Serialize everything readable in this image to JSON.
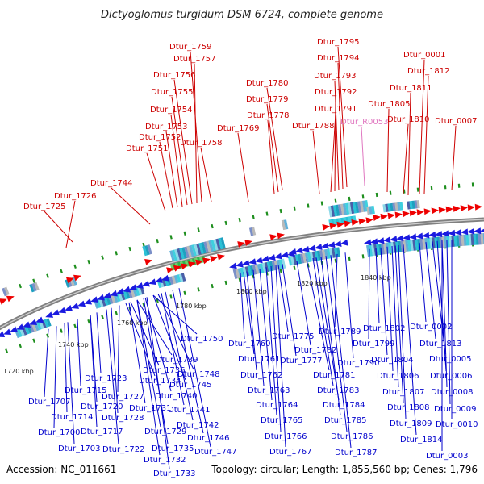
{
  "title": "Dictyoglomus turgidum DSM 6724, complete genome",
  "footer": {
    "accession": "Accession: NC_011661",
    "stats": "Topology: circular; Length: 1,855,560 bp; Genes: 1,796"
  },
  "colors": {
    "top_label": "#cc0000",
    "bottom_label": "#0000cc",
    "rna_label": "#e077c0",
    "forward_arrow": "#ee0000",
    "reverse_arrow": "#1a1ae0",
    "backbone": "#777777",
    "tick": "#1f8f1f"
  },
  "top_labels": [
    "Dtur_1759",
    "Dtur_1757",
    "Dtur_1756",
    "Dtur_1755",
    "Dtur_1754",
    "Dtur_1753",
    "Dtur_1752",
    "Dtur_1751",
    "Dtur_1758",
    "Dtur_1744",
    "Dtur_1726",
    "Dtur_1725",
    "Dtur_1780",
    "Dtur_1779",
    "Dtur_1778",
    "Dtur_1769",
    "Dtur_1795",
    "Dtur_1794",
    "Dtur_1793",
    "Dtur_1792",
    "Dtur_1791",
    "Dtur_1788",
    "Dtur_R0053",
    "Dtur_0001",
    "Dtur_1812",
    "Dtur_1811",
    "Dtur_1805",
    "Dtur_1810",
    "Dtur_0007"
  ],
  "bottom_labels": [
    "Dtur_1750",
    "Dtur_1739",
    "Dtur_1736",
    "Dtur_1748",
    "Dtur_1734",
    "Dtur_1745",
    "Dtur_1723",
    "Dtur_1715",
    "Dtur_1727",
    "Dtur_1740",
    "Dtur_1707",
    "Dtur_1720",
    "Dtur_1731",
    "Dtur_1714",
    "Dtur_1728",
    "Dtur_1741",
    "Dtur_1742",
    "Dtur_1700",
    "Dtur_1717",
    "Dtur_1729",
    "Dtur_1746",
    "Dtur_1703",
    "Dtur_1722",
    "Dtur_1735",
    "Dtur_1747",
    "Dtur_1732",
    "Dtur_1733",
    "Dtur_1760",
    "Dtur_1775",
    "Dtur_1782",
    "Dtur_1761",
    "Dtur_1777",
    "Dtur_1762",
    "Dtur_1781",
    "Dtur_1763",
    "Dtur_1783",
    "Dtur_1764",
    "Dtur_1784",
    "Dtur_1765",
    "Dtur_1785",
    "Dtur_1766",
    "Dtur_1786",
    "Dtur_1767",
    "Dtur_1787",
    "Dtur_1789",
    "Dtur_1790",
    "Dtur_1802",
    "Dtur_1799",
    "Dtur_1804",
    "Dtur_1806",
    "Dtur_1807",
    "Dtur_1808",
    "Dtur_1809",
    "Dtur_1814",
    "Dtur_0002",
    "Dtur_1813",
    "Dtur_0005",
    "Dtur_0006",
    "Dtur_0008",
    "Dtur_0009",
    "Dtur_0010",
    "Dtur_0003"
  ],
  "kbp_labels": [
    "1720 kbp",
    "1740 kbp",
    "1760 kbp",
    "1780 kbp",
    "1800 kbp",
    "1820 kbp",
    "1840 kbp"
  ]
}
